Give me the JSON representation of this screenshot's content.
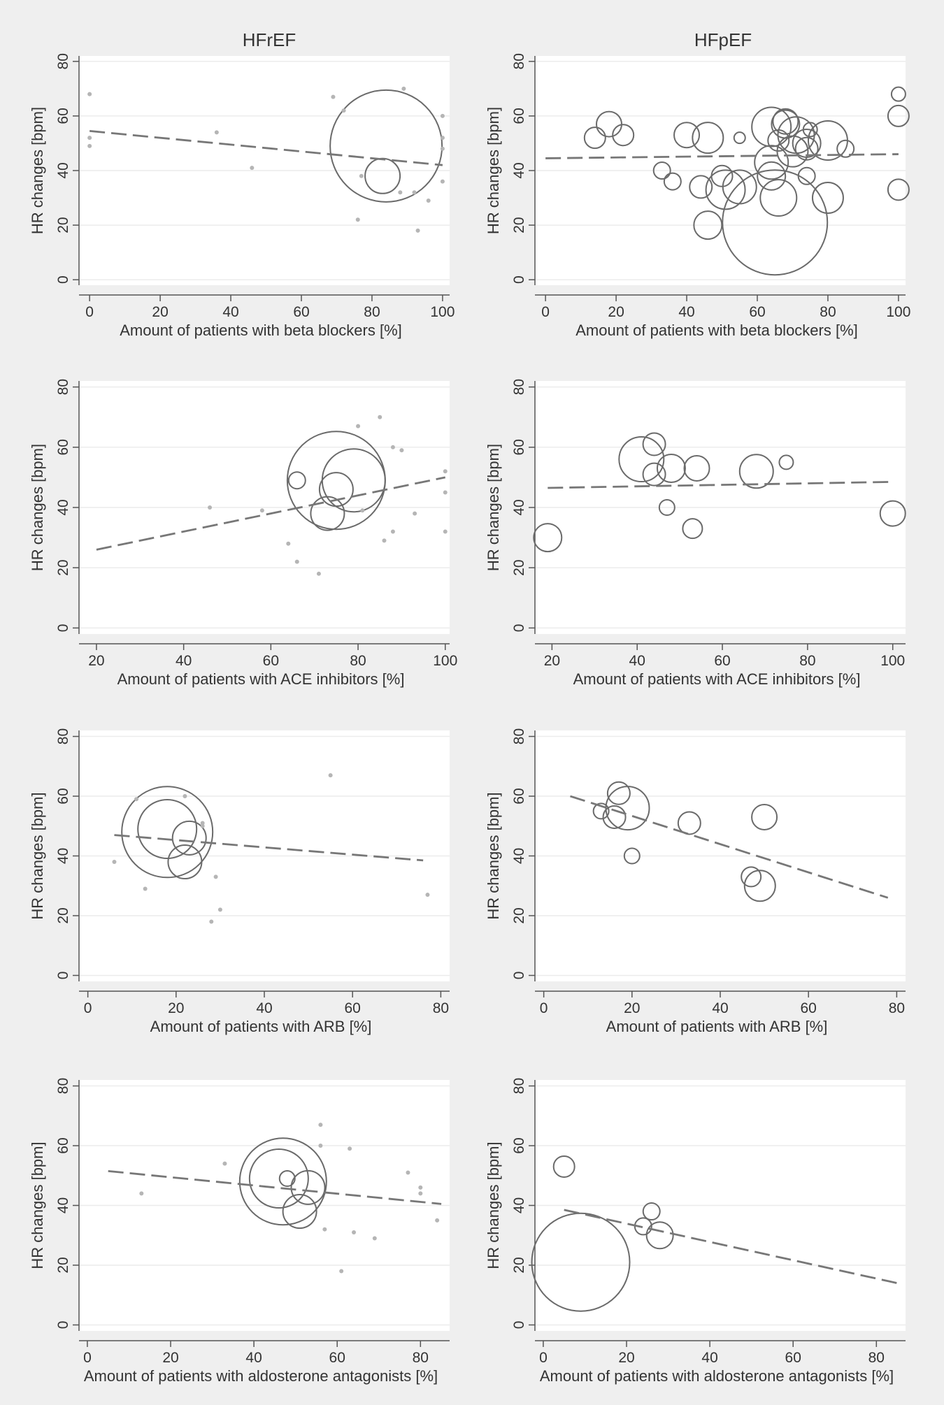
{
  "column_titles": [
    "HFrEF",
    "HFpEF"
  ],
  "colors": {
    "background": "#efefef",
    "plot_bg": "#ffffff",
    "ink": "#555555",
    "grid": "#ececec"
  },
  "chart_data": [
    {
      "type": "scatter",
      "group": "HFrEF",
      "xlabel": "Amount of patients with beta blockers [%]",
      "ylabel": "HR changes [bpm]",
      "xlim": [
        -3,
        102
      ],
      "ylim": [
        -2,
        82
      ],
      "xticks": [
        0,
        20,
        40,
        60,
        80,
        100
      ],
      "yticks": [
        0,
        20,
        40,
        60,
        80
      ],
      "fit": {
        "x": [
          0,
          100
        ],
        "y": [
          54.5,
          42
        ]
      },
      "points": [
        {
          "x": 84,
          "y": 49,
          "r": 8
        },
        {
          "x": 83,
          "y": 38,
          "r": 2.5
        },
        {
          "x": 0,
          "y": 68,
          "r": 0.3
        },
        {
          "x": 0,
          "y": 52,
          "r": 0.3
        },
        {
          "x": 0,
          "y": 49,
          "r": 0.3
        },
        {
          "x": 69,
          "y": 67,
          "r": 0.3
        },
        {
          "x": 72,
          "y": 62,
          "r": 0.3
        },
        {
          "x": 89,
          "y": 70,
          "r": 0.3
        },
        {
          "x": 100,
          "y": 60,
          "r": 0.3
        },
        {
          "x": 100,
          "y": 52,
          "r": 0.3
        },
        {
          "x": 100,
          "y": 48,
          "r": 0.3
        },
        {
          "x": 88,
          "y": 32,
          "r": 0.3
        },
        {
          "x": 92,
          "y": 32,
          "r": 0.3
        },
        {
          "x": 96,
          "y": 29,
          "r": 0.3
        },
        {
          "x": 100,
          "y": 36,
          "r": 0.3
        },
        {
          "x": 77,
          "y": 38,
          "r": 0.3
        },
        {
          "x": 76,
          "y": 22,
          "r": 0.3
        },
        {
          "x": 93,
          "y": 18,
          "r": 0.3
        },
        {
          "x": 46,
          "y": 41,
          "r": 0.3
        },
        {
          "x": 36,
          "y": 54,
          "r": 0.3
        }
      ]
    },
    {
      "type": "scatter",
      "group": "HFpEF",
      "xlabel": "Amount of patients with beta blockers [%]",
      "ylabel": "HR changes [bpm]",
      "xlim": [
        -3,
        102
      ],
      "ylim": [
        -2,
        82
      ],
      "xticks": [
        0,
        20,
        40,
        60,
        80,
        100
      ],
      "yticks": [
        0,
        20,
        40,
        60,
        80
      ],
      "fit": {
        "x": [
          0,
          100
        ],
        "y": [
          44.5,
          46
        ]
      },
      "points": [
        {
          "x": 14,
          "y": 52,
          "r": 1.5
        },
        {
          "x": 18,
          "y": 57,
          "r": 1.8
        },
        {
          "x": 22,
          "y": 53,
          "r": 1.5
        },
        {
          "x": 33,
          "y": 40,
          "r": 1.2
        },
        {
          "x": 36,
          "y": 36,
          "r": 1.2
        },
        {
          "x": 40,
          "y": 53,
          "r": 1.8
        },
        {
          "x": 44,
          "y": 34,
          "r": 1.6
        },
        {
          "x": 46,
          "y": 52,
          "r": 2.2
        },
        {
          "x": 46,
          "y": 20,
          "r": 2
        },
        {
          "x": 50,
          "y": 38,
          "r": 1.5
        },
        {
          "x": 51,
          "y": 33,
          "r": 2.8
        },
        {
          "x": 55,
          "y": 34,
          "r": 2.4
        },
        {
          "x": 55,
          "y": 52,
          "r": 0.8
        },
        {
          "x": 64,
          "y": 56,
          "r": 2.8
        },
        {
          "x": 64,
          "y": 43,
          "r": 2.4
        },
        {
          "x": 64,
          "y": 38,
          "r": 2
        },
        {
          "x": 66,
          "y": 51,
          "r": 1.5
        },
        {
          "x": 66,
          "y": 30,
          "r": 2.6
        },
        {
          "x": 65,
          "y": 21,
          "r": 7.5
        },
        {
          "x": 68,
          "y": 58,
          "r": 1.8
        },
        {
          "x": 68,
          "y": 57,
          "r": 2
        },
        {
          "x": 70,
          "y": 47,
          "r": 2.2
        },
        {
          "x": 71,
          "y": 53,
          "r": 2.6
        },
        {
          "x": 74,
          "y": 50,
          "r": 2
        },
        {
          "x": 74,
          "y": 48,
          "r": 1.6
        },
        {
          "x": 75,
          "y": 55,
          "r": 1
        },
        {
          "x": 74,
          "y": 38,
          "r": 1.2
        },
        {
          "x": 80,
          "y": 51,
          "r": 2.8
        },
        {
          "x": 80,
          "y": 30,
          "r": 2.2
        },
        {
          "x": 85,
          "y": 48,
          "r": 1.2
        },
        {
          "x": 100,
          "y": 68,
          "r": 1
        },
        {
          "x": 100,
          "y": 60,
          "r": 1.5
        },
        {
          "x": 100,
          "y": 33,
          "r": 1.5
        }
      ]
    },
    {
      "type": "scatter",
      "group": "HFrEF",
      "xlabel": "Amount of patients with ACE inhibitors [%]",
      "ylabel": "HR changes [bpm]",
      "xlim": [
        16,
        101
      ],
      "ylim": [
        -2,
        82
      ],
      "xticks": [
        20,
        40,
        60,
        80,
        100
      ],
      "yticks": [
        0,
        20,
        40,
        60,
        80
      ],
      "fit": {
        "x": [
          20,
          100
        ],
        "y": [
          26,
          50
        ]
      },
      "points": [
        {
          "x": 75,
          "y": 49,
          "r": 7
        },
        {
          "x": 79,
          "y": 49,
          "r": 4.5
        },
        {
          "x": 75,
          "y": 46,
          "r": 2.4
        },
        {
          "x": 73,
          "y": 38,
          "r": 2.4
        },
        {
          "x": 66,
          "y": 49,
          "r": 1.2
        },
        {
          "x": 80,
          "y": 67,
          "r": 0.3
        },
        {
          "x": 85,
          "y": 70,
          "r": 0.3
        },
        {
          "x": 90,
          "y": 59,
          "r": 0.3
        },
        {
          "x": 88,
          "y": 60,
          "r": 0.3
        },
        {
          "x": 100,
          "y": 52,
          "r": 0.3
        },
        {
          "x": 100,
          "y": 45,
          "r": 0.3
        },
        {
          "x": 100,
          "y": 32,
          "r": 0.3
        },
        {
          "x": 88,
          "y": 32,
          "r": 0.3
        },
        {
          "x": 86,
          "y": 29,
          "r": 0.3
        },
        {
          "x": 81,
          "y": 39,
          "r": 0.3
        },
        {
          "x": 93,
          "y": 38,
          "r": 0.3
        },
        {
          "x": 46,
          "y": 40,
          "r": 0.3
        },
        {
          "x": 58,
          "y": 39,
          "r": 0.3
        },
        {
          "x": 64,
          "y": 28,
          "r": 0.3
        },
        {
          "x": 66,
          "y": 22,
          "r": 0.3
        },
        {
          "x": 71,
          "y": 18,
          "r": 0.3
        }
      ]
    },
    {
      "type": "scatter",
      "group": "HFpEF",
      "xlabel": "Amount of patients with ACE inhibitors [%]",
      "ylabel": "HR changes [bpm]",
      "xlim": [
        16,
        103
      ],
      "ylim": [
        -2,
        82
      ],
      "xticks": [
        20,
        40,
        60,
        80,
        100
      ],
      "yticks": [
        0,
        20,
        40,
        60,
        80
      ],
      "fit": {
        "x": [
          19,
          100
        ],
        "y": [
          46.5,
          48.5
        ]
      },
      "points": [
        {
          "x": 19,
          "y": 30,
          "r": 2
        },
        {
          "x": 41,
          "y": 56,
          "r": 3.2
        },
        {
          "x": 44,
          "y": 61,
          "r": 1.6
        },
        {
          "x": 44,
          "y": 51,
          "r": 1.6
        },
        {
          "x": 47,
          "y": 40,
          "r": 1.1
        },
        {
          "x": 48,
          "y": 53,
          "r": 2
        },
        {
          "x": 53,
          "y": 33,
          "r": 1.4
        },
        {
          "x": 54,
          "y": 53,
          "r": 1.8
        },
        {
          "x": 68,
          "y": 52,
          "r": 2.4
        },
        {
          "x": 75,
          "y": 55,
          "r": 1
        },
        {
          "x": 100,
          "y": 38,
          "r": 1.8
        }
      ]
    },
    {
      "type": "scatter",
      "group": "HFrEF",
      "xlabel": "Amount of patients with ARB [%]",
      "ylabel": "HR changes [bpm]",
      "xlim": [
        -2,
        82
      ],
      "ylim": [
        -2,
        82
      ],
      "xticks": [
        0,
        20,
        40,
        60,
        80
      ],
      "yticks": [
        0,
        20,
        40,
        60,
        80
      ],
      "fit": {
        "x": [
          6,
          76
        ],
        "y": [
          47,
          38.5
        ]
      },
      "points": [
        {
          "x": 18,
          "y": 48,
          "r": 6.5
        },
        {
          "x": 18,
          "y": 49,
          "r": 4.2
        },
        {
          "x": 23,
          "y": 46,
          "r": 2.4
        },
        {
          "x": 22,
          "y": 38,
          "r": 2.4
        },
        {
          "x": 55,
          "y": 67,
          "r": 0.3
        },
        {
          "x": 11,
          "y": 59,
          "r": 0.3
        },
        {
          "x": 22,
          "y": 60,
          "r": 0.3
        },
        {
          "x": 26,
          "y": 51,
          "r": 0.3
        },
        {
          "x": 26,
          "y": 50,
          "r": 0.3
        },
        {
          "x": 6,
          "y": 38,
          "r": 0.3
        },
        {
          "x": 13,
          "y": 29,
          "r": 0.3
        },
        {
          "x": 29,
          "y": 33,
          "r": 0.3
        },
        {
          "x": 30,
          "y": 22,
          "r": 0.3
        },
        {
          "x": 28,
          "y": 18,
          "r": 0.3
        },
        {
          "x": 77,
          "y": 27,
          "r": 0.3
        }
      ]
    },
    {
      "type": "scatter",
      "group": "HFpEF",
      "xlabel": "Amount of patients with ARB [%]",
      "ylabel": "HR changes [bpm]",
      "xlim": [
        -2,
        82
      ],
      "ylim": [
        -2,
        82
      ],
      "xticks": [
        0,
        20,
        40,
        60,
        80
      ],
      "yticks": [
        0,
        20,
        40,
        60,
        80
      ],
      "fit": {
        "x": [
          6,
          78
        ],
        "y": [
          60,
          26
        ]
      },
      "points": [
        {
          "x": 13,
          "y": 55,
          "r": 1.1
        },
        {
          "x": 16,
          "y": 53,
          "r": 1.6
        },
        {
          "x": 17,
          "y": 61,
          "r": 1.6
        },
        {
          "x": 19,
          "y": 56,
          "r": 3.1
        },
        {
          "x": 20,
          "y": 40,
          "r": 1.1
        },
        {
          "x": 33,
          "y": 51,
          "r": 1.6
        },
        {
          "x": 47,
          "y": 33,
          "r": 1.4
        },
        {
          "x": 49,
          "y": 30,
          "r": 2.2
        },
        {
          "x": 50,
          "y": 53,
          "r": 1.8
        }
      ]
    },
    {
      "type": "scatter",
      "group": "HFrEF",
      "xlabel": "Amount of patients with aldosterone antagonists [%]",
      "ylabel": "HR changes [bpm]",
      "xlim": [
        -2,
        87
      ],
      "ylim": [
        -2,
        82
      ],
      "xticks": [
        0,
        20,
        40,
        60,
        80
      ],
      "yticks": [
        0,
        20,
        40,
        60,
        80
      ],
      "fit": {
        "x": [
          5,
          85
        ],
        "y": [
          51.5,
          40.5
        ]
      },
      "points": [
        {
          "x": 47,
          "y": 48,
          "r": 6.2
        },
        {
          "x": 46,
          "y": 49,
          "r": 4.2
        },
        {
          "x": 53,
          "y": 46,
          "r": 2.4
        },
        {
          "x": 51,
          "y": 38,
          "r": 2.4
        },
        {
          "x": 48,
          "y": 49,
          "r": 1.1
        },
        {
          "x": 56,
          "y": 67,
          "r": 0.3
        },
        {
          "x": 56,
          "y": 60,
          "r": 0.3
        },
        {
          "x": 63,
          "y": 59,
          "r": 0.3
        },
        {
          "x": 77,
          "y": 51,
          "r": 0.3
        },
        {
          "x": 80,
          "y": 46,
          "r": 0.3
        },
        {
          "x": 80,
          "y": 44,
          "r": 0.3
        },
        {
          "x": 13,
          "y": 44,
          "r": 0.3
        },
        {
          "x": 33,
          "y": 54,
          "r": 0.3
        },
        {
          "x": 57,
          "y": 32,
          "r": 0.3
        },
        {
          "x": 64,
          "y": 31,
          "r": 0.3
        },
        {
          "x": 69,
          "y": 29,
          "r": 0.3
        },
        {
          "x": 61,
          "y": 18,
          "r": 0.3
        },
        {
          "x": 84,
          "y": 35,
          "r": 0.3
        }
      ]
    },
    {
      "type": "scatter",
      "group": "HFpEF",
      "xlabel": "Amount of patients with aldosterone antagonists [%]",
      "ylabel": "HR changes [bpm]",
      "xlim": [
        -2,
        87
      ],
      "ylim": [
        -2,
        82
      ],
      "xticks": [
        0,
        20,
        40,
        60,
        80
      ],
      "yticks": [
        0,
        20,
        40,
        60,
        80
      ],
      "fit": {
        "x": [
          5,
          85
        ],
        "y": [
          38.5,
          14
        ]
      },
      "points": [
        {
          "x": 5,
          "y": 53,
          "r": 1.5
        },
        {
          "x": 9,
          "y": 21,
          "r": 7
        },
        {
          "x": 24,
          "y": 33,
          "r": 1.2
        },
        {
          "x": 26,
          "y": 38,
          "r": 1.2
        },
        {
          "x": 28,
          "y": 30,
          "r": 1.9
        }
      ]
    }
  ]
}
